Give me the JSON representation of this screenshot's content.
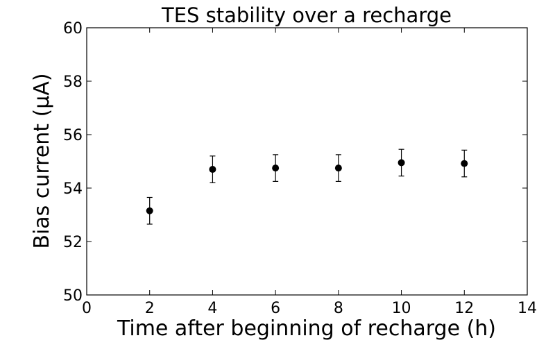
{
  "chart_data": {
    "type": "scatter",
    "title": "TES stability over a recharge",
    "xlabel": "Time after beginning of recharge (h)",
    "ylabel": "Bias current (μA)",
    "xlim": [
      0,
      14
    ],
    "ylim": [
      50,
      60
    ],
    "xticks": [
      0,
      2,
      4,
      6,
      8,
      10,
      12,
      14
    ],
    "yticks": [
      50,
      52,
      54,
      56,
      58,
      60
    ],
    "grid": false,
    "series": [
      {
        "name": "Bias current",
        "marker": "circle",
        "color": "#000000",
        "points": [
          {
            "x": 2,
            "y": 53.15,
            "err": 0.5
          },
          {
            "x": 4,
            "y": 54.7,
            "err": 0.5
          },
          {
            "x": 6,
            "y": 54.75,
            "err": 0.5
          },
          {
            "x": 8,
            "y": 54.75,
            "err": 0.5
          },
          {
            "x": 10,
            "y": 54.95,
            "err": 0.5
          },
          {
            "x": 12,
            "y": 54.92,
            "err": 0.5
          }
        ]
      }
    ]
  }
}
